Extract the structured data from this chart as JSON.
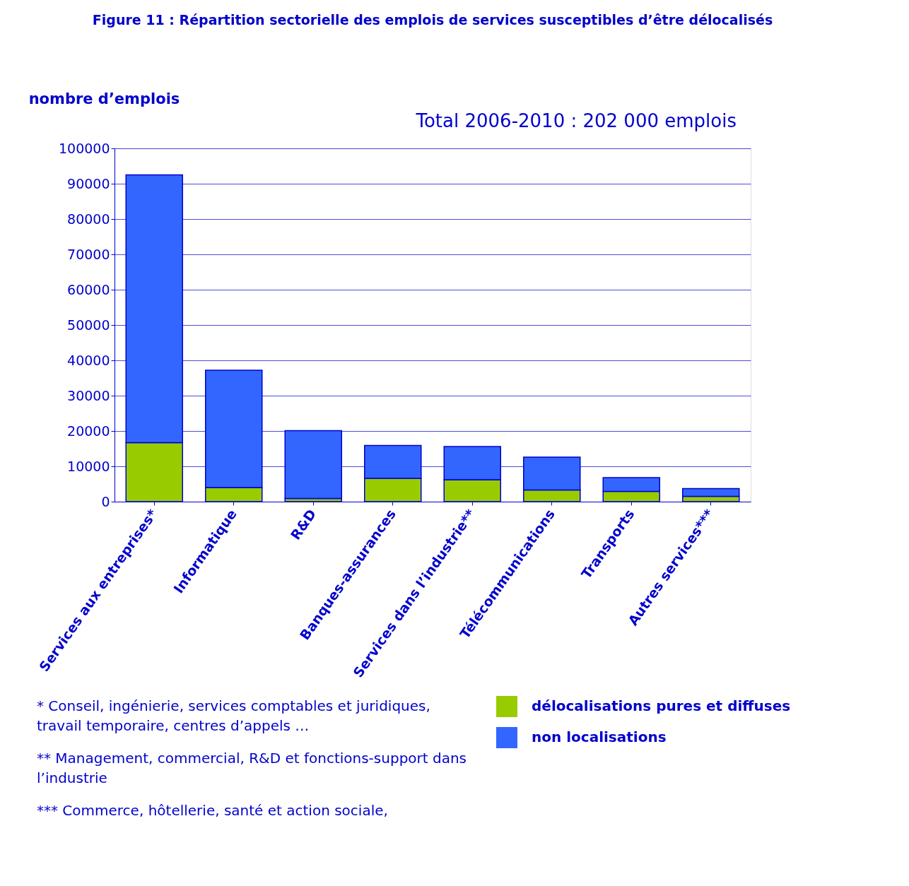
{
  "chart_data": {
    "type": "bar",
    "stacked": true,
    "title": "Figure 11 : Répartition sectorielle des emplois de services susceptibles d’être délocalisés",
    "subtitle": "Total 2006-2010 : 202 000 emplois",
    "ylabel": "nombre d’emplois",
    "categories": [
      "Services aux entreprises*",
      "Informatique",
      "R&D",
      "Banques-assurances",
      "Services dans l’industrie**",
      "Télécommunications",
      "Transports",
      "Autres services***"
    ],
    "series": [
      {
        "name": "délocalisations pures et diffuses",
        "color": "#99cc00",
        "values": [
          16700,
          4000,
          900,
          6600,
          6200,
          3300,
          2900,
          1500
        ]
      },
      {
        "name": "non localisations",
        "color": "#3366ff",
        "values": [
          75800,
          33200,
          19200,
          9300,
          9400,
          9300,
          3900,
          2200
        ]
      }
    ],
    "ylim": [
      0,
      100000
    ],
    "yticks": [
      0,
      10000,
      20000,
      30000,
      40000,
      50000,
      60000,
      70000,
      80000,
      90000,
      100000
    ],
    "grid": "y",
    "legend": "bottom right",
    "annotations": [
      "* Conseil, ingénierie, services comptables et juridiques, travail temporaire, centres d’appels …",
      "** Management, commercial, R&D et fonctions-support dans l’industrie",
      "***  Commerce, hôtellerie, santé et action sociale,"
    ]
  }
}
